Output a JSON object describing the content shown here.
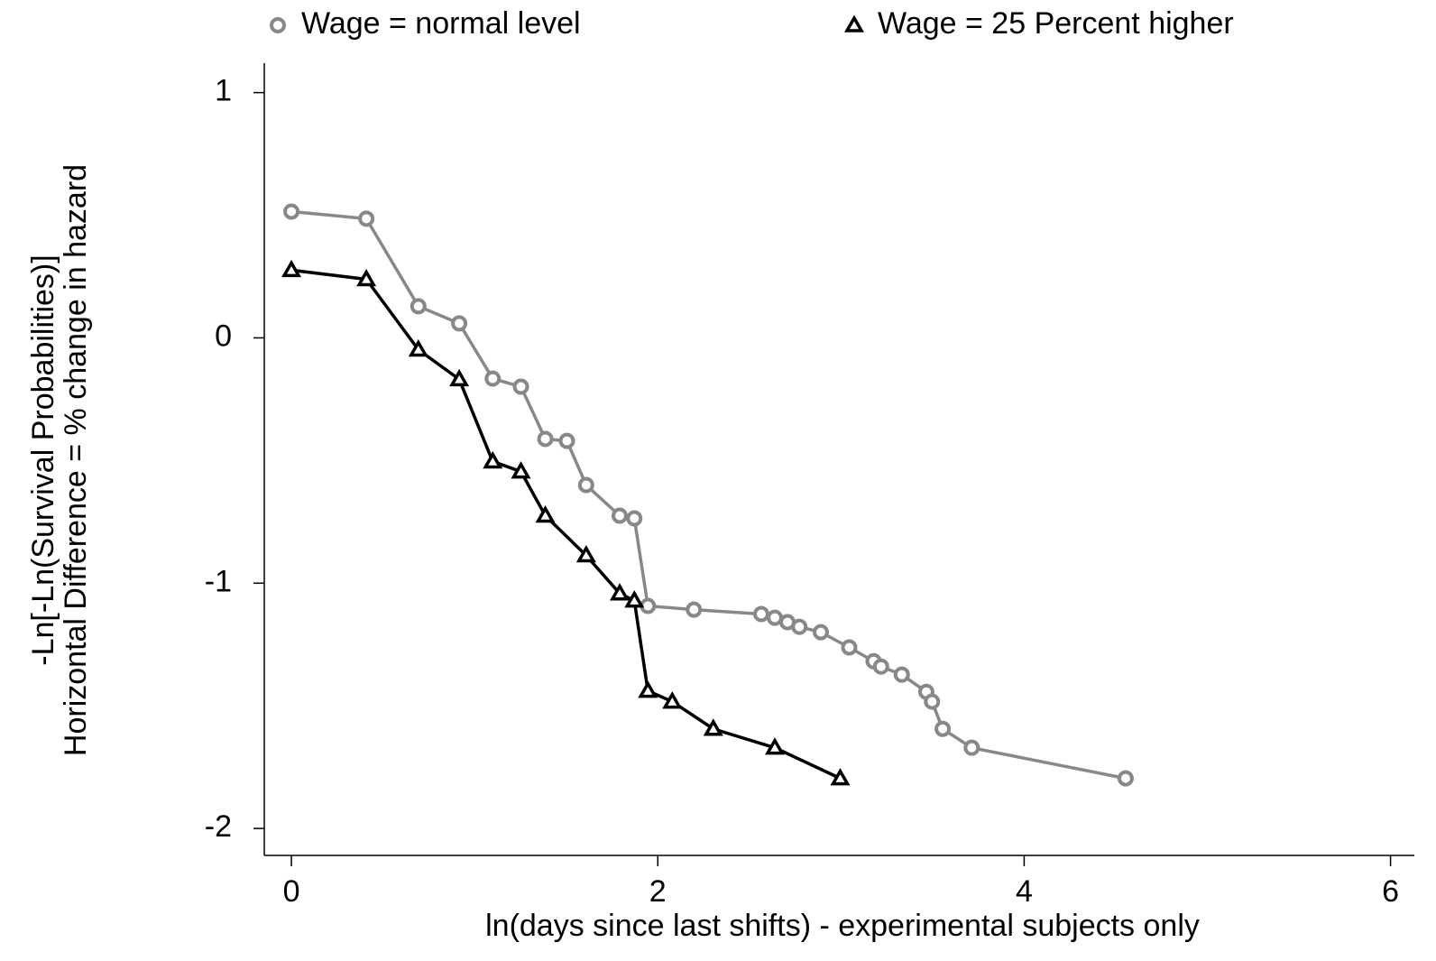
{
  "chart_data": {
    "type": "line",
    "xlabel": "ln(days since last shifts) - experimental subjects only",
    "ylabel": [
      "-Ln[-Ln(Survival Probabilities)]",
      "Horizontal Difference = % change in hazard"
    ],
    "xlim": [
      -0.148,
      6.13
    ],
    "ylim": [
      -2.11,
      1.12
    ],
    "xticks": [
      0,
      2,
      4,
      6
    ],
    "yticks": [
      1,
      0,
      -1,
      -2
    ],
    "series": [
      {
        "name": "Wage = normal level",
        "color": "#888888",
        "marker": "circle",
        "x": [
          0,
          0.409,
          0.693,
          0.916,
          1.099,
          1.253,
          1.386,
          1.504,
          1.609,
          1.792,
          1.872,
          1.946,
          2.197,
          2.565,
          2.639,
          2.708,
          2.773,
          2.89,
          3.045,
          3.178,
          3.219,
          3.332,
          3.466,
          3.497,
          3.555,
          3.714,
          4.554
        ],
        "values": [
          0.515,
          0.486,
          0.129,
          0.059,
          -0.166,
          -0.199,
          -0.412,
          -0.42,
          -0.6,
          -0.725,
          -0.736,
          -1.093,
          -1.108,
          -1.126,
          -1.141,
          -1.159,
          -1.178,
          -1.2,
          -1.262,
          -1.318,
          -1.34,
          -1.373,
          -1.443,
          -1.483,
          -1.594,
          -1.671,
          -1.796
        ]
      },
      {
        "name": "Wage = 25 Percent higher",
        "color": "#000000",
        "marker": "triangle",
        "x": [
          0,
          0.409,
          0.693,
          0.916,
          1.099,
          1.253,
          1.386,
          1.609,
          1.792,
          1.872,
          1.946,
          2.079,
          2.303,
          2.639,
          2.996
        ],
        "values": [
          0.276,
          0.239,
          -0.048,
          -0.169,
          -0.504,
          -0.545,
          -0.725,
          -0.887,
          -1.042,
          -1.071,
          -1.439,
          -1.483,
          -1.594,
          -1.671,
          -1.796
        ]
      }
    ]
  }
}
